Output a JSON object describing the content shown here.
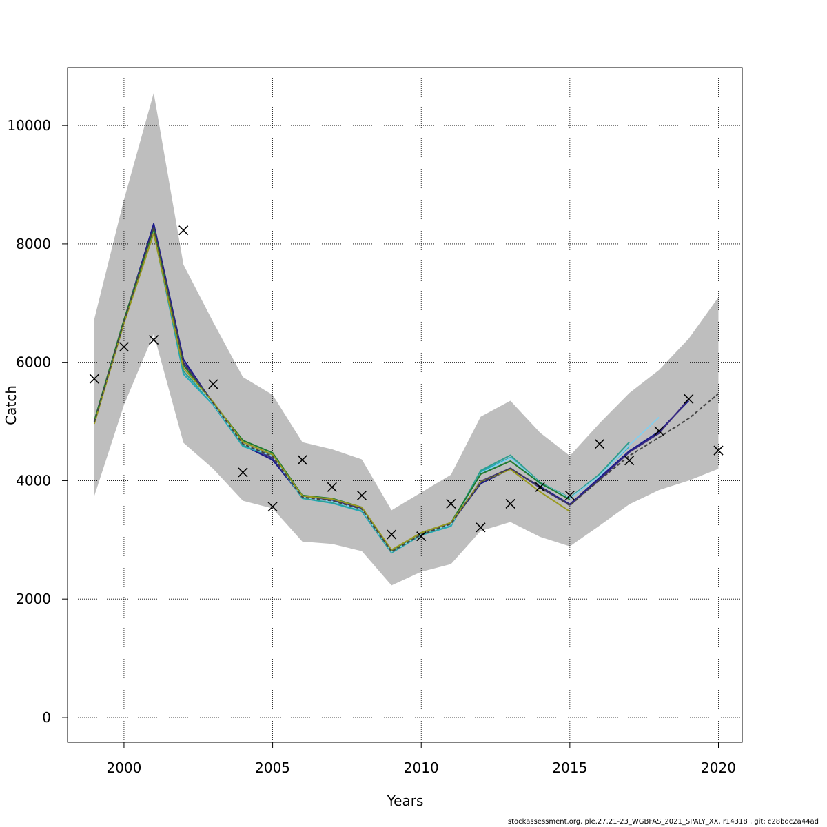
{
  "chart_data": {
    "type": "line",
    "title": "",
    "xlabel": "Years",
    "ylabel": "Catch",
    "xlim": [
      1998.1,
      2020.8
    ],
    "ylim": [
      -420,
      10980
    ],
    "xticks": [
      2000,
      2005,
      2010,
      2015,
      2020
    ],
    "yticks": [
      0,
      2000,
      4000,
      6000,
      8000,
      10000
    ],
    "grid": true,
    "legend": "none",
    "confidence_band": {
      "x": [
        1999,
        2000,
        2001,
        2002,
        2003,
        2004,
        2005,
        2006,
        2007,
        2008,
        2009,
        2010,
        2011,
        2012,
        2013,
        2014,
        2015,
        2016,
        2017,
        2018,
        2019,
        2020
      ],
      "upper": [
        6730,
        8750,
        10550,
        7650,
        6680,
        5750,
        5450,
        4650,
        4530,
        4360,
        3500,
        3800,
        4100,
        5080,
        5350,
        4810,
        4420,
        4970,
        5480,
        5870,
        6400,
        7100
      ],
      "lower": [
        3740,
        5280,
        6480,
        4640,
        4200,
        3660,
        3530,
        2970,
        2930,
        2810,
        2230,
        2460,
        2590,
        3150,
        3300,
        3050,
        2890,
        3240,
        3600,
        3840,
        4000,
        4200
      ],
      "color": "#bebebe"
    },
    "series": [
      {
        "color": "#1a1a8c",
        "start_year": 1999,
        "values": [
          5000,
          6700,
          8340,
          6050,
          5300,
          4600,
          4350,
          3720,
          3660,
          3520,
          2800,
          3100,
          3280,
          3950,
          4200,
          3900,
          3600,
          4050,
          4500,
          4830,
          5350
        ]
      },
      {
        "color": "#3a2a80",
        "start_year": 1999,
        "values": [
          4980,
          6680,
          8280,
          6000,
          5320,
          4620,
          4380,
          3730,
          3670,
          3530,
          2810,
          3110,
          3270,
          3990,
          4210,
          3880,
          3590,
          4020,
          4480,
          4800,
          5380
        ]
      },
      {
        "color": "#20aabb",
        "start_year": 1999,
        "values": [
          4990,
          6700,
          8200,
          5800,
          5280,
          4580,
          4420,
          3700,
          3620,
          3480,
          2780,
          3080,
          3230,
          4150,
          4390,
          3950,
          3700,
          4100,
          4580
        ]
      },
      {
        "color": "#2e9e8e",
        "start_year": 1999,
        "values": [
          5000,
          6710,
          8250,
          5850,
          5300,
          4600,
          4430,
          3710,
          3630,
          3500,
          2790,
          3090,
          3250,
          4170,
          4430,
          3970,
          3710,
          4110,
          4650
        ]
      },
      {
        "color": "#87ceeb",
        "start_year": 1999,
        "values": [
          5000,
          6700,
          8250,
          5900,
          5300,
          4620,
          4410,
          3720,
          3650,
          3510,
          2800,
          3100,
          3260,
          4120,
          4380,
          3960,
          3700,
          4080,
          4600,
          5070
        ]
      },
      {
        "color": "#1e7a2e",
        "start_year": 1999,
        "values": [
          5010,
          6720,
          8260,
          5950,
          5320,
          4680,
          4470,
          3750,
          3700,
          3550,
          2820,
          3120,
          3290,
          4110,
          4330,
          3960,
          3680
        ]
      },
      {
        "color": "#9a9a20",
        "start_year": 1999,
        "values": [
          4960,
          6660,
          8180,
          5900,
          5330,
          4650,
          4440,
          3740,
          3690,
          3550,
          2830,
          3120,
          3290,
          3980,
          4190,
          3810,
          3480
        ]
      }
    ],
    "reference_series": {
      "color": "#444444",
      "dashed": true,
      "start_year": 1999,
      "values": [
        4990,
        6690,
        8280,
        5980,
        5310,
        4620,
        4410,
        3720,
        3660,
        3520,
        2800,
        3090,
        3270,
        3970,
        4210,
        3890,
        3580,
        4010,
        4420,
        4730,
        5050,
        5470
      ]
    },
    "observations": {
      "marker": "x",
      "x": [
        1999,
        2000,
        2001,
        2002,
        2003,
        2004,
        2005,
        2006,
        2007,
        2008,
        2009,
        2010,
        2011,
        2012,
        2013,
        2014,
        2015,
        2016,
        2017,
        2018,
        2019,
        2020
      ],
      "y": [
        5720,
        6260,
        6380,
        8230,
        5630,
        4140,
        3560,
        4350,
        3890,
        3750,
        3090,
        3060,
        3610,
        3210,
        3610,
        3890,
        3750,
        4620,
        4340,
        4840,
        5380,
        4510
      ]
    }
  },
  "footer": "stockassessment.org, ple.27.21-23_WGBFAS_2021_SPALY_XX, r14318 , git: c28bdc2a44ad"
}
